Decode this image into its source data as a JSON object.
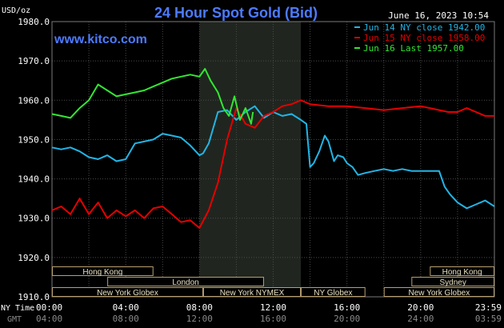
{
  "chart_data": {
    "type": "line",
    "title": "24 Hour Spot Gold (Bid)",
    "subtitle": "www.kitco.com",
    "timestamp": "June 16, 2023 10:54",
    "ylabel": "USD/oz",
    "ylim": [
      1910,
      1980
    ],
    "yticks": [
      "1980.0",
      "1970.0",
      "1960.0",
      "1950.0",
      "1940.0",
      "1930.0",
      "1920.0",
      "1910.0"
    ],
    "xlim": [
      0,
      24
    ],
    "x_row_labels": {
      "ny": "NY Time",
      "gmt": "GMT"
    },
    "xticks_ny": [
      "00:00",
      "04:00",
      "08:00",
      "12:00",
      "16:00",
      "20:00",
      "23:59"
    ],
    "xticks_gmt": [
      "04:00",
      "08:00",
      "12:00",
      "16:00",
      "20:00",
      "24:00",
      "03:59"
    ],
    "grid": true,
    "legend_position": "top-right",
    "shaded_region": {
      "x_start": 8.0,
      "x_end": 13.5,
      "color": "#20261f"
    },
    "series": [
      {
        "name": "Jun 14 NY close 1942.00",
        "color": "#22b5e6",
        "x": [
          0,
          0.5,
          1,
          1.5,
          2,
          2.5,
          3,
          3.5,
          4,
          4.5,
          5,
          5.5,
          6,
          6.5,
          7,
          7.5,
          8,
          8.2,
          8.5,
          9,
          9.5,
          10,
          10.5,
          11,
          11.5,
          12,
          12.5,
          13,
          13.5,
          13.8,
          14,
          14.2,
          14.5,
          14.8,
          15,
          15.3,
          15.5,
          15.8,
          16,
          16.3,
          16.6,
          17,
          17.5,
          18,
          18.5,
          19,
          19.5,
          20,
          20.5,
          21,
          21.3,
          21.6,
          22,
          22.5,
          23,
          23.5,
          24
        ],
        "y": [
          1948,
          1947.5,
          1948,
          1947,
          1945.5,
          1945,
          1946,
          1944.5,
          1945,
          1949,
          1949.5,
          1950,
          1951.5,
          1951,
          1950.5,
          1948.5,
          1946,
          1946.5,
          1949,
          1957,
          1957.5,
          1955,
          1957,
          1958.5,
          1955.5,
          1957,
          1956,
          1956.5,
          1955,
          1954,
          1943,
          1944,
          1947,
          1951,
          1949.5,
          1944.5,
          1946,
          1945.5,
          1944,
          1943,
          1941,
          1941.5,
          1942,
          1942.5,
          1942,
          1942.5,
          1942,
          1942,
          1942,
          1942,
          1938,
          1936,
          1934,
          1932.5,
          1933.5,
          1934.5,
          1933
        ]
      },
      {
        "name": "Jun 15 NY close 1958.00",
        "color": "#e60000",
        "x": [
          0,
          0.5,
          1,
          1.5,
          2,
          2.5,
          3,
          3.5,
          4,
          4.5,
          5,
          5.5,
          6,
          6.5,
          7,
          7.5,
          8,
          8.5,
          9,
          9.5,
          10,
          10.5,
          11,
          11.5,
          12,
          12.5,
          13,
          13.5,
          14,
          15,
          16,
          17,
          18,
          19,
          20,
          20.5,
          21,
          21.5,
          22,
          22.5,
          23,
          23.5,
          24
        ],
        "y": [
          1932,
          1933,
          1931,
          1935,
          1931,
          1934,
          1930,
          1932,
          1930.5,
          1932,
          1930,
          1932.5,
          1933,
          1931,
          1929,
          1929.5,
          1927.5,
          1932,
          1939,
          1950,
          1958,
          1954,
          1953,
          1956,
          1957,
          1958.5,
          1959,
          1960,
          1959,
          1958.5,
          1958.5,
          1958,
          1957.5,
          1958,
          1958.5,
          1958,
          1957.5,
          1957,
          1957,
          1958,
          1957,
          1956,
          1956
        ]
      },
      {
        "name": "Jun 16 Last 1957.00",
        "color": "#33e633",
        "x": [
          0,
          0.5,
          1,
          1.5,
          2,
          2.5,
          3,
          3.5,
          4,
          4.5,
          5,
          5.5,
          6,
          6.5,
          7,
          7.5,
          8,
          8.3,
          8.6,
          9,
          9.3,
          9.6,
          9.9,
          10.2,
          10.5,
          10.8,
          10.9
        ],
        "y": [
          1956.5,
          1956,
          1955.5,
          1958,
          1960,
          1964,
          1962.5,
          1961,
          1961.5,
          1962,
          1962.5,
          1963.5,
          1964.5,
          1965.5,
          1966,
          1966.5,
          1966,
          1968,
          1965,
          1962,
          1958,
          1956,
          1961,
          1955,
          1958,
          1954,
          1957
        ]
      }
    ],
    "sessions": [
      {
        "label": "Hong Kong",
        "row": 0,
        "x_start": 0,
        "x_end": 5.5
      },
      {
        "label": "Hong Kong",
        "row": 0,
        "x_start": 20.5,
        "x_end": 24
      },
      {
        "label": "London",
        "row": 1,
        "x_start": 3,
        "x_end": 11.5
      },
      {
        "label": "Sydney",
        "row": 1,
        "x_start": 19.5,
        "x_end": 24
      },
      {
        "label": "New York Globex",
        "row": 2,
        "x_start": 0,
        "x_end": 8.2
      },
      {
        "label": "New York NYMEX",
        "row": 2,
        "x_start": 8.2,
        "x_end": 13.5
      },
      {
        "label": "NY Globex",
        "row": 2,
        "x_start": 13.5,
        "x_end": 17
      },
      {
        "label": "New York Globex",
        "row": 2,
        "x_start": 18,
        "x_end": 24
      }
    ]
  }
}
